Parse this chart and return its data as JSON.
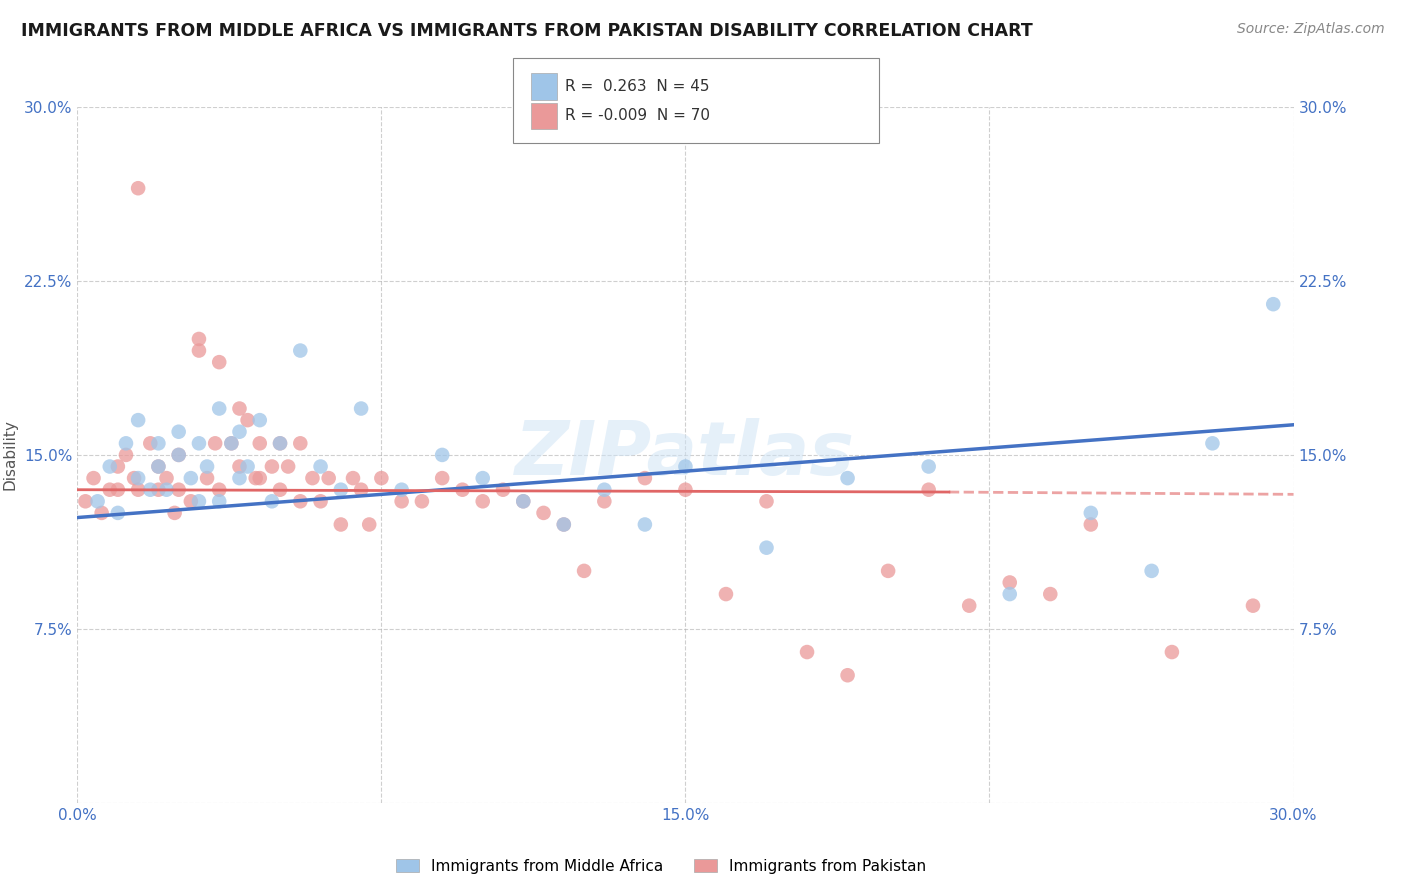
{
  "title": "IMMIGRANTS FROM MIDDLE AFRICA VS IMMIGRANTS FROM PAKISTAN DISABILITY CORRELATION CHART",
  "source": "Source: ZipAtlas.com",
  "ylabel": "Disability",
  "watermark": "ZIPatlas",
  "xlim": [
    0.0,
    0.3
  ],
  "ylim": [
    0.0,
    0.3
  ],
  "xticks": [
    0.0,
    0.075,
    0.15,
    0.225,
    0.3
  ],
  "yticks": [
    0.0,
    0.075,
    0.15,
    0.225,
    0.3
  ],
  "blue_color": "#9fc5e8",
  "pink_color": "#ea9999",
  "blue_line_color": "#4472c4",
  "pink_line_color": "#e06666",
  "axis_color": "#4472c4",
  "grid_color": "#b0b0b0",
  "blue_scatter_x": [
    0.005,
    0.008,
    0.01,
    0.012,
    0.015,
    0.015,
    0.018,
    0.02,
    0.02,
    0.022,
    0.025,
    0.025,
    0.028,
    0.03,
    0.03,
    0.032,
    0.035,
    0.035,
    0.038,
    0.04,
    0.04,
    0.042,
    0.045,
    0.048,
    0.05,
    0.055,
    0.06,
    0.065,
    0.07,
    0.08,
    0.09,
    0.1,
    0.11,
    0.12,
    0.13,
    0.14,
    0.15,
    0.17,
    0.19,
    0.21,
    0.23,
    0.25,
    0.265,
    0.28,
    0.295
  ],
  "blue_scatter_y": [
    0.13,
    0.145,
    0.125,
    0.155,
    0.14,
    0.165,
    0.135,
    0.145,
    0.155,
    0.135,
    0.15,
    0.16,
    0.14,
    0.13,
    0.155,
    0.145,
    0.13,
    0.17,
    0.155,
    0.14,
    0.16,
    0.145,
    0.165,
    0.13,
    0.155,
    0.195,
    0.145,
    0.135,
    0.17,
    0.135,
    0.15,
    0.14,
    0.13,
    0.12,
    0.135,
    0.12,
    0.145,
    0.11,
    0.14,
    0.145,
    0.09,
    0.125,
    0.1,
    0.155,
    0.215
  ],
  "pink_scatter_x": [
    0.002,
    0.004,
    0.006,
    0.008,
    0.01,
    0.01,
    0.012,
    0.014,
    0.015,
    0.015,
    0.018,
    0.02,
    0.02,
    0.022,
    0.024,
    0.025,
    0.025,
    0.028,
    0.03,
    0.03,
    0.032,
    0.034,
    0.035,
    0.035,
    0.038,
    0.04,
    0.04,
    0.042,
    0.044,
    0.045,
    0.045,
    0.048,
    0.05,
    0.05,
    0.052,
    0.055,
    0.055,
    0.058,
    0.06,
    0.062,
    0.065,
    0.068,
    0.07,
    0.072,
    0.075,
    0.08,
    0.085,
    0.09,
    0.095,
    0.1,
    0.105,
    0.11,
    0.115,
    0.12,
    0.125,
    0.13,
    0.14,
    0.15,
    0.16,
    0.17,
    0.18,
    0.19,
    0.2,
    0.21,
    0.22,
    0.23,
    0.24,
    0.25,
    0.27,
    0.29
  ],
  "pink_scatter_y": [
    0.13,
    0.14,
    0.125,
    0.135,
    0.145,
    0.135,
    0.15,
    0.14,
    0.265,
    0.135,
    0.155,
    0.135,
    0.145,
    0.14,
    0.125,
    0.15,
    0.135,
    0.13,
    0.2,
    0.195,
    0.14,
    0.155,
    0.19,
    0.135,
    0.155,
    0.17,
    0.145,
    0.165,
    0.14,
    0.155,
    0.14,
    0.145,
    0.155,
    0.135,
    0.145,
    0.155,
    0.13,
    0.14,
    0.13,
    0.14,
    0.12,
    0.14,
    0.135,
    0.12,
    0.14,
    0.13,
    0.13,
    0.14,
    0.135,
    0.13,
    0.135,
    0.13,
    0.125,
    0.12,
    0.1,
    0.13,
    0.14,
    0.135,
    0.09,
    0.13,
    0.065,
    0.055,
    0.1,
    0.135,
    0.085,
    0.095,
    0.09,
    0.12,
    0.065,
    0.085
  ],
  "blue_line_x0": 0.0,
  "blue_line_x1": 0.3,
  "blue_line_y0": 0.123,
  "blue_line_y1": 0.163,
  "pink_line_x0": 0.0,
  "pink_line_x1": 0.215,
  "pink_line_xd0": 0.215,
  "pink_line_xd1": 0.3,
  "pink_line_y0": 0.135,
  "pink_line_y1": 0.134,
  "pink_line_yd0": 0.134,
  "pink_line_yd1": 0.133
}
